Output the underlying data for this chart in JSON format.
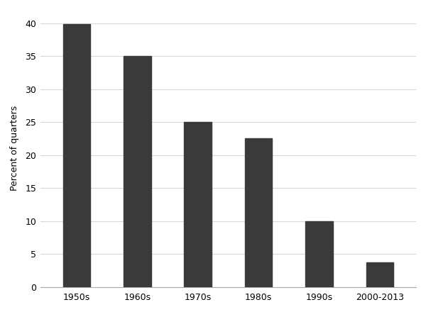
{
  "categories": [
    "1950s",
    "1960s",
    "1970s",
    "1980s",
    "1990s",
    "2000-2013"
  ],
  "values": [
    39.8,
    35.0,
    25.0,
    22.5,
    10.0,
    3.7
  ],
  "bar_color": "#3a3a3a",
  "ylabel": "Percent of quarters",
  "ylim": [
    0,
    42
  ],
  "yticks": [
    0,
    5,
    10,
    15,
    20,
    25,
    30,
    35,
    40
  ],
  "grid_color": "#d8d8d8",
  "background_color": "#ffffff",
  "bar_width": 0.45
}
